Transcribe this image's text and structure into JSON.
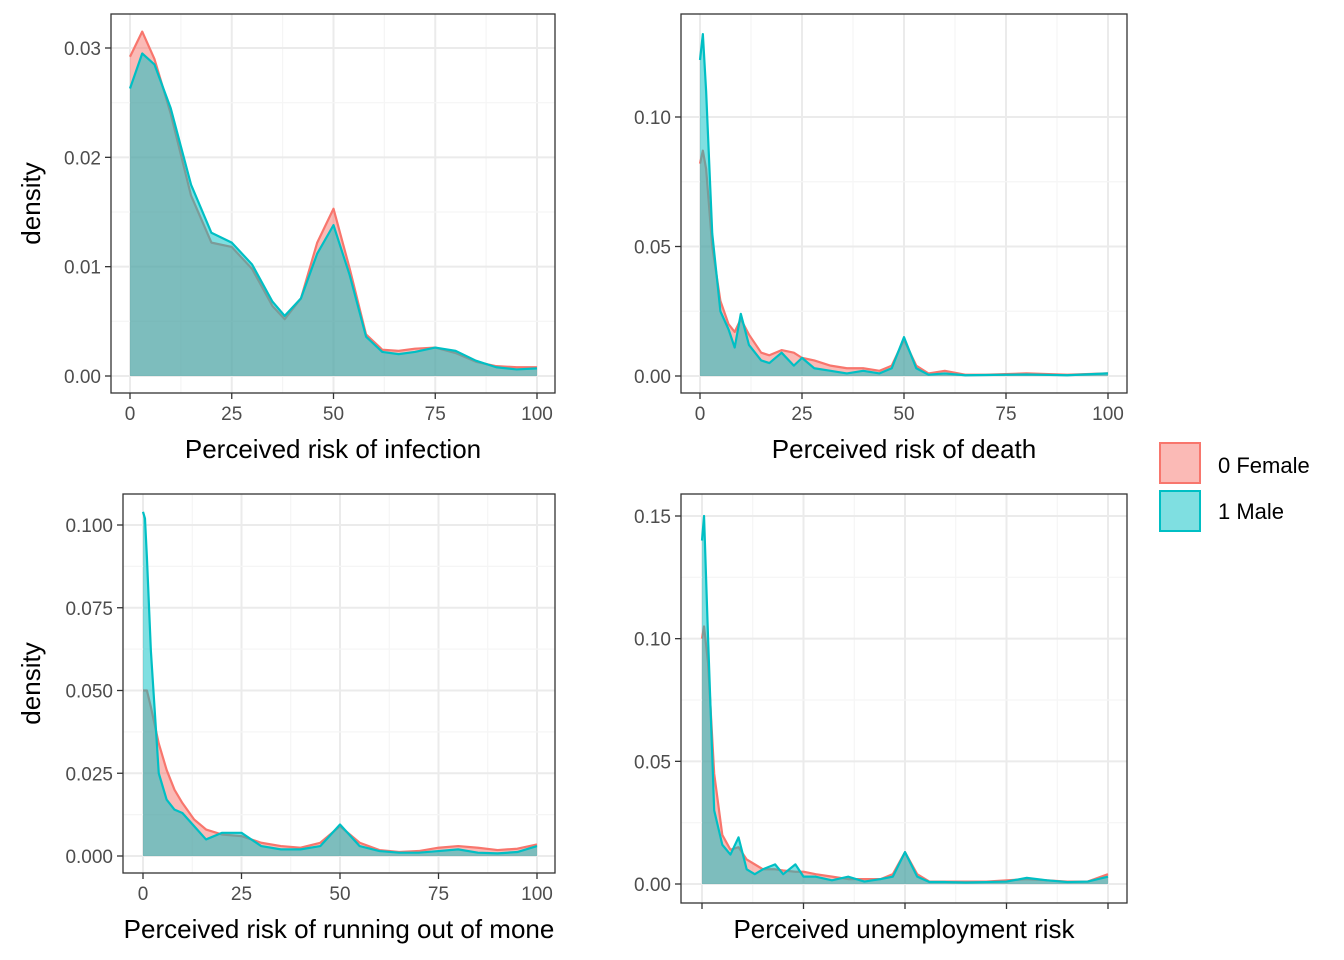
{
  "colors": {
    "female_fill": "#F8766D",
    "male_fill": "#00BFC4",
    "grid_major": "#EBEBEB",
    "grid_minor": "#F5F5F5",
    "panel_border": "#333333",
    "tick_text": "#4D4D4D"
  },
  "legend": {
    "entries": [
      {
        "label": "0 Female",
        "color": "#F8766D"
      },
      {
        "label": "1 Male",
        "color": "#00BFC4"
      }
    ]
  },
  "chart_data": [
    {
      "type": "area",
      "xlabel": "Perceived risk of infection",
      "ylabel": "density",
      "xlim": [
        0,
        100
      ],
      "ylim": [
        0,
        0.03
      ],
      "xticks": [
        "0",
        "25",
        "50",
        "75",
        "100"
      ],
      "yticks": [
        "0.00",
        "0.01",
        "0.02",
        "0.03"
      ],
      "grid": true,
      "series": [
        {
          "name": "0 Female",
          "x": [
            0,
            3,
            6,
            10,
            15,
            20,
            25,
            30,
            35,
            38,
            42,
            46,
            50,
            54,
            58,
            62,
            66,
            70,
            75,
            80,
            85,
            90,
            95,
            100
          ],
          "y": [
            0.0292,
            0.0315,
            0.029,
            0.024,
            0.0165,
            0.0122,
            0.0118,
            0.0098,
            0.0064,
            0.0052,
            0.0071,
            0.0122,
            0.0153,
            0.0098,
            0.0038,
            0.0024,
            0.0023,
            0.0025,
            0.0026,
            0.0021,
            0.0013,
            0.0009,
            0.0008,
            0.0008
          ]
        },
        {
          "name": "1 Male",
          "x": [
            0,
            3,
            6,
            10,
            15,
            20,
            25,
            30,
            35,
            38,
            42,
            46,
            50,
            54,
            58,
            62,
            66,
            70,
            75,
            80,
            85,
            90,
            95,
            100
          ],
          "y": [
            0.0263,
            0.0295,
            0.0285,
            0.0245,
            0.0175,
            0.0131,
            0.0122,
            0.0102,
            0.0068,
            0.0055,
            0.0071,
            0.0112,
            0.0138,
            0.0092,
            0.0036,
            0.0022,
            0.002,
            0.0022,
            0.0026,
            0.0023,
            0.0014,
            0.0008,
            0.0006,
            0.0007
          ]
        }
      ]
    },
    {
      "type": "area",
      "xlabel": "Perceived risk of death",
      "ylabel": "",
      "xlim": [
        0,
        100
      ],
      "ylim": [
        0,
        0.13
      ],
      "xticks": [
        "0",
        "25",
        "50",
        "75",
        "100"
      ],
      "yticks": [
        "0.00",
        "0.05",
        "0.10"
      ],
      "grid": true,
      "series": [
        {
          "name": "0 Female",
          "x": [
            0,
            0.7,
            1.5,
            3,
            5,
            7,
            8.5,
            10,
            12,
            15,
            17,
            20,
            23,
            25,
            28,
            32,
            36,
            40,
            44,
            47,
            50,
            53,
            56,
            60,
            65,
            70,
            80,
            90,
            100
          ],
          "y": [
            0.082,
            0.087,
            0.08,
            0.05,
            0.029,
            0.02,
            0.017,
            0.022,
            0.016,
            0.009,
            0.008,
            0.01,
            0.009,
            0.007,
            0.006,
            0.004,
            0.003,
            0.003,
            0.002,
            0.004,
            0.014,
            0.004,
            0.001,
            0.002,
            0.0005,
            0.0005,
            0.001,
            0.0005,
            0.001
          ]
        },
        {
          "name": "1 Male",
          "x": [
            0,
            0.7,
            1.5,
            3,
            5,
            7,
            8.5,
            10,
            12,
            15,
            17,
            20,
            23,
            25,
            28,
            32,
            36,
            40,
            44,
            47,
            50,
            53,
            56,
            60,
            65,
            70,
            80,
            90,
            100
          ],
          "y": [
            0.122,
            0.132,
            0.11,
            0.055,
            0.025,
            0.018,
            0.011,
            0.024,
            0.012,
            0.006,
            0.005,
            0.009,
            0.004,
            0.007,
            0.003,
            0.002,
            0.001,
            0.002,
            0.001,
            0.003,
            0.015,
            0.003,
            0.0005,
            0.001,
            0.0003,
            0.0004,
            0.0006,
            0.0003,
            0.001
          ]
        }
      ]
    },
    {
      "type": "area",
      "xlabel": "Perceived risk of running out of mone",
      "ylabel": "density",
      "xlim": [
        0,
        100
      ],
      "ylim": [
        0,
        0.104
      ],
      "xticks": [
        "0",
        "25",
        "50",
        "75",
        "100"
      ],
      "yticks": [
        "0.000",
        "0.025",
        "0.050",
        "0.075",
        "0.100"
      ],
      "grid": true,
      "series": [
        {
          "name": "0 Female",
          "x": [
            0,
            1,
            2,
            4,
            6,
            8,
            10,
            13,
            16,
            20,
            25,
            30,
            35,
            40,
            45,
            50,
            55,
            60,
            65,
            70,
            75,
            80,
            85,
            90,
            95,
            100
          ],
          "y": [
            0.05,
            0.05,
            0.045,
            0.034,
            0.026,
            0.02,
            0.016,
            0.011,
            0.008,
            0.0065,
            0.006,
            0.004,
            0.003,
            0.0025,
            0.004,
            0.009,
            0.004,
            0.0018,
            0.0012,
            0.0015,
            0.0025,
            0.003,
            0.0025,
            0.0018,
            0.0022,
            0.0035
          ]
        },
        {
          "name": "1 Male",
          "x": [
            0,
            0.5,
            1,
            2,
            4,
            6,
            8,
            10,
            13,
            16,
            20,
            25,
            30,
            35,
            40,
            45,
            50,
            55,
            60,
            65,
            70,
            75,
            80,
            85,
            90,
            95,
            100
          ],
          "y": [
            0.104,
            0.102,
            0.09,
            0.062,
            0.025,
            0.017,
            0.014,
            0.013,
            0.009,
            0.005,
            0.007,
            0.007,
            0.003,
            0.002,
            0.002,
            0.003,
            0.0095,
            0.003,
            0.0015,
            0.001,
            0.001,
            0.0015,
            0.002,
            0.001,
            0.0008,
            0.0012,
            0.003
          ]
        }
      ]
    },
    {
      "type": "area",
      "xlabel": "Perceived unemployment risk",
      "ylabel": "",
      "xlim": [
        0,
        100
      ],
      "ylim": [
        0,
        0.15
      ],
      "xticks": [
        "",
        "",
        "",
        "",
        ""
      ],
      "yticks": [
        "0.00",
        "0.05",
        "0.10",
        "0.15"
      ],
      "grid": true,
      "series": [
        {
          "name": "0 Female",
          "x": [
            0,
            0.5,
            1.5,
            3,
            5,
            7,
            9,
            11,
            13,
            15,
            18,
            20,
            23,
            25,
            28,
            32,
            36,
            40,
            44,
            47,
            50,
            53,
            56,
            60,
            65,
            70,
            75,
            80,
            85,
            90,
            95,
            100
          ],
          "y": [
            0.1,
            0.105,
            0.09,
            0.045,
            0.02,
            0.014,
            0.015,
            0.01,
            0.008,
            0.006,
            0.006,
            0.0055,
            0.005,
            0.005,
            0.004,
            0.003,
            0.002,
            0.002,
            0.002,
            0.004,
            0.013,
            0.004,
            0.001,
            0.001,
            0.001,
            0.001,
            0.0015,
            0.002,
            0.0015,
            0.001,
            0.001,
            0.004
          ]
        },
        {
          "name": "1 Male",
          "x": [
            0,
            0.5,
            1.5,
            3,
            5,
            7,
            9,
            11,
            13,
            15,
            18,
            20,
            23,
            25,
            28,
            32,
            36,
            40,
            44,
            47,
            50,
            53,
            56,
            60,
            65,
            70,
            75,
            80,
            85,
            90,
            95,
            100
          ],
          "y": [
            0.14,
            0.15,
            0.1,
            0.03,
            0.016,
            0.012,
            0.019,
            0.006,
            0.004,
            0.006,
            0.008,
            0.004,
            0.008,
            0.003,
            0.003,
            0.0015,
            0.003,
            0.001,
            0.002,
            0.003,
            0.013,
            0.003,
            0.0008,
            0.0008,
            0.0006,
            0.0008,
            0.001,
            0.0025,
            0.0015,
            0.0008,
            0.001,
            0.003
          ]
        }
      ]
    }
  ]
}
